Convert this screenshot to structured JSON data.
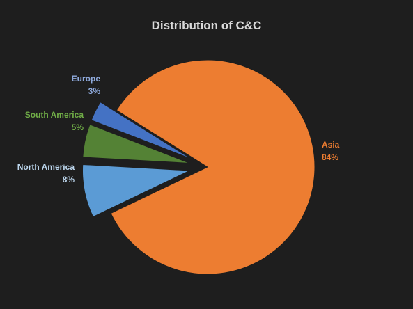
{
  "chart_data": {
    "type": "pie",
    "title": "Distribution of C&C",
    "slices": [
      {
        "label": "Asia",
        "value": 84,
        "value_label": "84%",
        "color": "#ed7d31"
      },
      {
        "label": "North America",
        "value": 8,
        "value_label": "8%",
        "color": "#5b9bd5"
      },
      {
        "label": "South America",
        "value": 5,
        "value_label": "5%",
        "color": "#548235"
      },
      {
        "label": "Europe",
        "value": 3,
        "value_label": "3%",
        "color": "#4472c4"
      }
    ],
    "exploded": true,
    "legend": "none",
    "background": "#1e1e1e",
    "label_colors": {
      "Asia": "#ed7d31",
      "North America": "#bdd7ee",
      "South America": "#70ad47",
      "Europe": "#8faadc"
    }
  }
}
